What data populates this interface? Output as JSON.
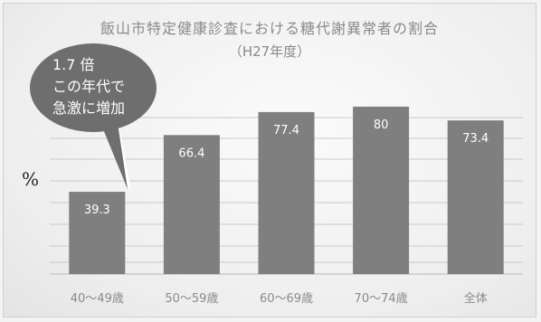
{
  "chart_data": {
    "type": "bar",
    "title": "飯山市特定健康診査における糖代謝異常者の割合",
    "subtitle": "（H27年度）",
    "ylabel": "%",
    "categories": [
      "40～49歳",
      "50～59歳",
      "60～69歳",
      "70～74歳",
      "全体"
    ],
    "series": [
      {
        "values": [
          39.3,
          66.4,
          77.4,
          80,
          73.4
        ]
      }
    ],
    "ylim": [
      0,
      86
    ],
    "grid": true,
    "bar_color": "#7f7f7f",
    "grid_color": "#c9c9c9"
  },
  "callout": {
    "lines": [
      "1.7 倍",
      "この年代で",
      "急激に増加"
    ],
    "fill": "#6e6e6e"
  }
}
